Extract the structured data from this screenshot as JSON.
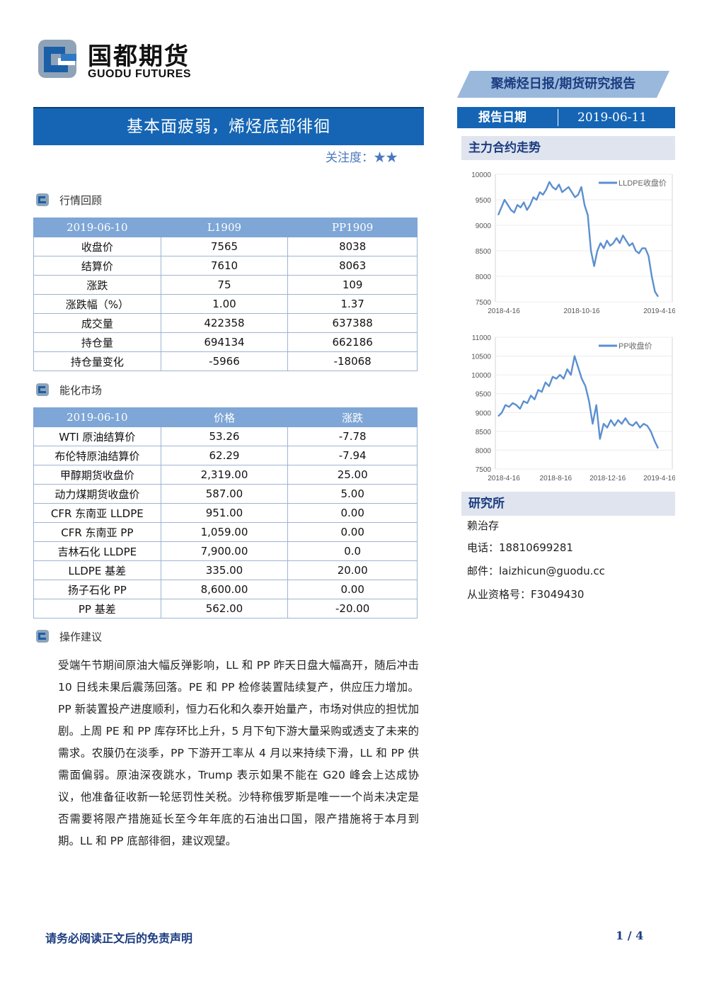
{
  "header": {
    "logo_cn": "国都期货",
    "logo_en": "GUODU FUTURES",
    "ribbon": "聚烯烃日报/期货研究报告",
    "date_label": "报告日期",
    "date_value": "2019-06-11"
  },
  "title": "基本面疲弱，烯烃底部徘徊",
  "attention": "关注度：★★",
  "sections": {
    "market_review": "行情回顾",
    "energy_market": "能化市场",
    "advice": "操作建议"
  },
  "market_table": {
    "headers": [
      "2019-06-10",
      "L1909",
      "PP1909"
    ],
    "rows": [
      [
        "收盘价",
        "7565",
        "8038"
      ],
      [
        "结算价",
        "7610",
        "8063"
      ],
      [
        "涨跌",
        "75",
        "109"
      ],
      [
        "涨跌幅（%）",
        "1.00",
        "1.37"
      ],
      [
        "成交量",
        "422358",
        "637388"
      ],
      [
        "持仓量",
        "694134",
        "662186"
      ],
      [
        "持仓量变化",
        "-5966",
        "-18068"
      ]
    ]
  },
  "energy_table": {
    "headers": [
      "2019-06-10",
      "价格",
      "涨跌"
    ],
    "rows": [
      [
        "WTI 原油结算价",
        "53.26",
        "-7.78"
      ],
      [
        "布伦特原油结算价",
        "62.29",
        "-7.94"
      ],
      [
        "甲醇期货收盘价",
        "2,319.00",
        "25.00"
      ],
      [
        "动力煤期货收盘价",
        "587.00",
        "5.00"
      ],
      [
        "CFR 东南亚 LLDPE",
        "951.00",
        "0.00"
      ],
      [
        "CFR 东南亚 PP",
        "1,059.00",
        "0.00"
      ],
      [
        "吉林石化 LLDPE",
        "7,900.00",
        "0.0"
      ],
      [
        "LLDPE 基差",
        "335.00",
        "20.00"
      ],
      [
        "扬子石化 PP",
        "8,600.00",
        "0.00"
      ],
      [
        "PP 基差",
        "562.00",
        "-20.00"
      ]
    ]
  },
  "advice_text": "受端午节期间原油大幅反弹影响，LL 和 PP 昨天日盘大幅高开，随后冲击 10 日线未果后震荡回落。PE 和 PP 检修装置陆续复产，供应压力增加。PP 新装置投产进度顺利，恒力石化和久泰开始量产，市场对供应的担忧加剧。上周 PE 和 PP 库存环比上升，5 月下旬下游大量采购或透支了未来的需求。农膜仍在淡季，PP 下游开工率从 4 月以来持续下滑，LL 和 PP 供需面偏弱。原油深夜跳水，Trump 表示如果不能在 G20 峰会上达成协议，他准备征收新一轮惩罚性关税。沙特称俄罗斯是唯一一个尚未决定是否需要将限产措施延长至今年年底的石油出口国，限产措施将于本月到期。LL 和 PP 底部徘徊，建议观望。",
  "sidebar": {
    "trend_title": "主力合约走势",
    "research_title": "研究所",
    "analyst": "赖治存",
    "phone": "电话：18810699281",
    "email": "邮件：laizhicun@guodu.cc",
    "license": "从业资格号：F3049430"
  },
  "chart_data": [
    {
      "type": "line",
      "series": [
        {
          "name": "LLDPE收盘价",
          "color": "#5b8fd0",
          "values": [
            9200,
            9350,
            9500,
            9400,
            9300,
            9250,
            9400,
            9350,
            9450,
            9300,
            9400,
            9550,
            9500,
            9650,
            9600,
            9700,
            9850,
            9750,
            9700,
            9800,
            9650,
            9700,
            9750,
            9650,
            9550,
            9600,
            9750,
            9400,
            9200,
            8500,
            8200,
            8500,
            8650,
            8550,
            8700,
            8600,
            8650,
            8750,
            8650,
            8800,
            8700,
            8600,
            8650,
            8500,
            8450,
            8550,
            8550,
            8400,
            8000,
            7700,
            7600
          ]
        }
      ],
      "x_labels": [
        "2018-4-16",
        "2018-10-16",
        "2019-4-16"
      ],
      "y_ticks": [
        10000,
        9500,
        9000,
        8500,
        8000,
        7500
      ],
      "ylim": [
        7500,
        10000
      ],
      "legend": "top-right"
    },
    {
      "type": "line",
      "series": [
        {
          "name": "PP收盘价",
          "color": "#5b8fd0",
          "values": [
            8900,
            9000,
            9200,
            9150,
            9250,
            9200,
            9100,
            9300,
            9250,
            9450,
            9350,
            9600,
            9550,
            9800,
            9700,
            9950,
            9900,
            10000,
            9900,
            10150,
            10000,
            10500,
            10200,
            9900,
            9700,
            9300,
            8700,
            9200,
            8300,
            8700,
            8600,
            8800,
            8650,
            8800,
            8700,
            8850,
            8700,
            8650,
            8750,
            8600,
            8700,
            8650,
            8500,
            8250,
            8050
          ]
        }
      ],
      "x_labels": [
        "2018-4-16",
        "2018-8-16",
        "2018-12-16",
        "2019-4-16"
      ],
      "y_ticks": [
        11000,
        10500,
        10000,
        9500,
        9000,
        8500,
        8000,
        7500
      ],
      "ylim": [
        7500,
        11000
      ],
      "legend": "top-right"
    }
  ],
  "footer": {
    "disclaimer": "请务必阅读正文后的免责声明",
    "page": "1 / 4"
  }
}
